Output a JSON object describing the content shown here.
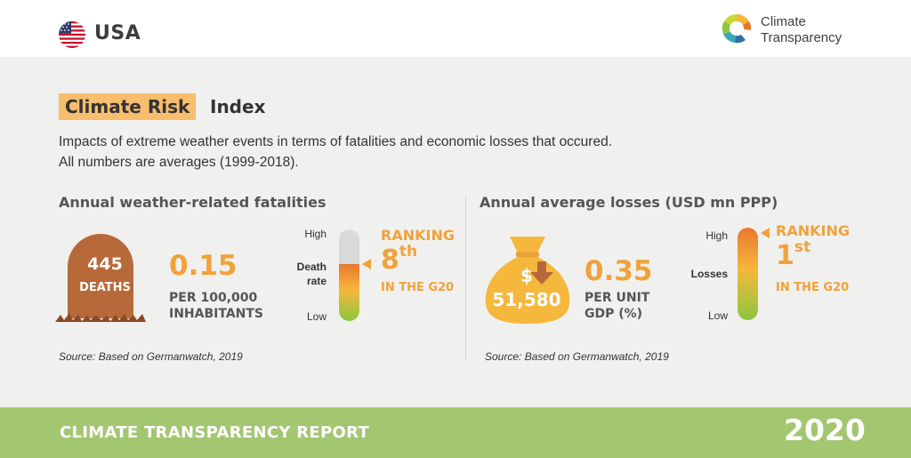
{
  "header": {
    "country": "USA",
    "flag_icon": "us-flag-icon",
    "logo_line1": "Climate",
    "logo_line2": "Transparency"
  },
  "title": {
    "highlight": "Climate Risk",
    "rest": "Index"
  },
  "description": {
    "line1": "Impacts of extreme weather events in terms of fatalities and economic losses that occured.",
    "line2": "All numbers are averages (1999-2018)."
  },
  "fatalities": {
    "section_title": "Annual weather-related fatalities",
    "deaths_value": "445",
    "deaths_label": "DEATHS",
    "rate_value": "0.15",
    "rate_sub1": "PER 100,000",
    "rate_sub2": "INHABITANTS",
    "gauge_high": "High",
    "gauge_mid1": "Death",
    "gauge_mid2": "rate",
    "gauge_low": "Low",
    "gauge_level": 0.62,
    "ranking_word": "RANKING",
    "ranking_num": "8",
    "ranking_suffix": "th",
    "ranking_scope": "IN THE G20",
    "source": "Source: Based on Germanwatch, 2019"
  },
  "losses": {
    "section_title": "Annual average losses (USD mn PPP)",
    "losses_value": "51,580",
    "bag_symbol": "$",
    "gdp_value": "0.35",
    "gdp_sub1": "PER UNIT",
    "gdp_sub2": "GDP (%)",
    "gauge_high": "High",
    "gauge_mid": "Losses",
    "gauge_low": "Low",
    "gauge_level": 1.0,
    "ranking_word": "RANKING",
    "ranking_num": "1",
    "ranking_suffix": "st",
    "ranking_scope": "IN THE G20",
    "source": "Source: Based on Germanwatch, 2019"
  },
  "footer": {
    "title": "CLIMATE TRANSPARENCY REPORT",
    "year": "2020"
  },
  "colors": {
    "accent": "#f0a23a",
    "highlight": "#f7be6e",
    "grave": "#b8693a",
    "footer": "#a3c671",
    "background": "#f0f0ee"
  }
}
